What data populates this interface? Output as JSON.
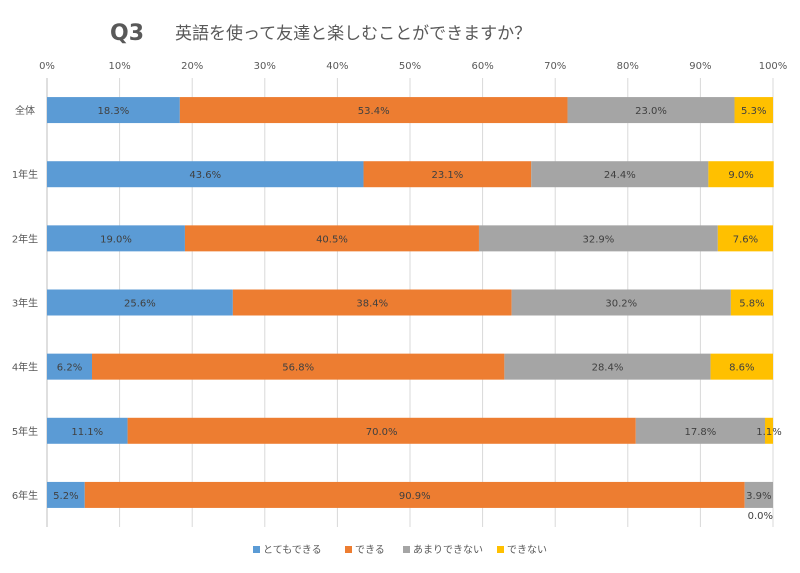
{
  "chart_data": {
    "type": "bar",
    "orientation": "horizontal",
    "stacked": "percent",
    "title_prefix": "Q3",
    "title": "英語を使って友達と楽しむことができますか？",
    "categories": [
      "全体",
      "1年生",
      "2年生",
      "3年生",
      "4年生",
      "5年生",
      "6年生"
    ],
    "series": [
      {
        "name": "とてもできる",
        "color": "#5B9BD5",
        "values": [
          18.3,
          43.6,
          19.0,
          25.6,
          6.2,
          11.1,
          5.2
        ]
      },
      {
        "name": "できる",
        "color": "#ED7D31",
        "values": [
          53.4,
          23.1,
          40.5,
          38.4,
          56.8,
          70.0,
          90.9
        ]
      },
      {
        "name": "あまりできない",
        "color": "#A5A5A5",
        "values": [
          23.0,
          24.4,
          32.9,
          30.2,
          28.4,
          17.8,
          3.9
        ]
      },
      {
        "name": "できない",
        "color": "#FFC000",
        "values": [
          5.3,
          9.0,
          7.6,
          5.8,
          8.6,
          1.1,
          0.0
        ]
      }
    ],
    "xlim": [
      0,
      100
    ],
    "xticks": [
      "0%",
      "10%",
      "20%",
      "30%",
      "40%",
      "50%",
      "60%",
      "70%",
      "80%",
      "90%",
      "100%"
    ],
    "grid": true,
    "legend_position": "bottom"
  }
}
